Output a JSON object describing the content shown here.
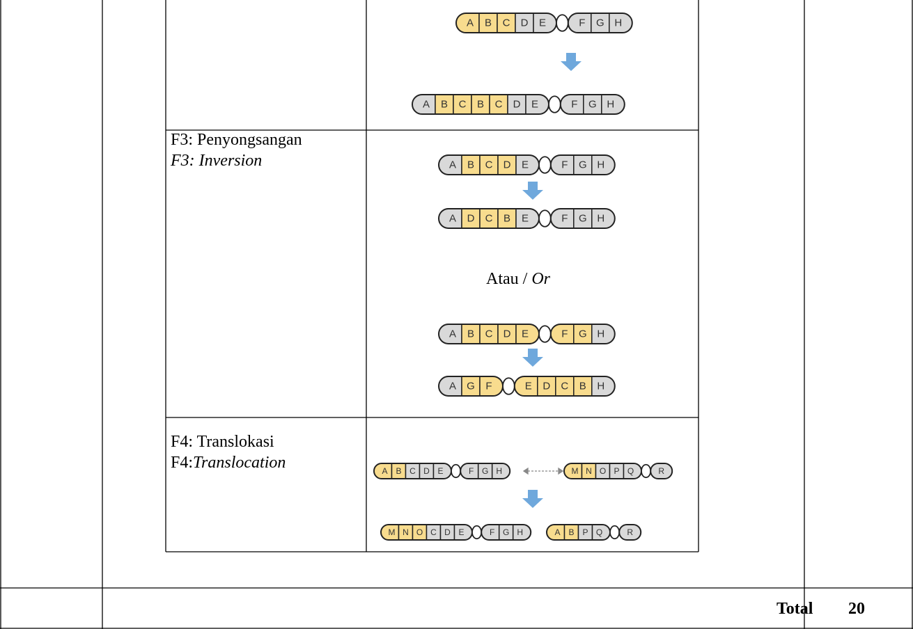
{
  "rows": [
    {
      "label": null,
      "label_italic": null
    },
    {
      "label": "F3: Penyongsangan",
      "label_italic": "F3: Inversion"
    },
    {
      "label": "F4: Translokasi",
      "label_prefix": "F4:",
      "label_italic": "Translocation"
    }
  ],
  "or_text": {
    "plain": "Atau /",
    "italic": "Or"
  },
  "total": {
    "label": "Total",
    "value": "20"
  },
  "colors": {
    "yellow": "#f8dc8e",
    "gray": "#d9d9d9",
    "arrow": "#6fa8dc"
  },
  "chromosomes": [
    {
      "arms": [
        [
          {
            "label": "A",
            "yellow": true
          },
          {
            "label": "B",
            "yellow": true
          },
          {
            "label": "C",
            "yellow": true
          },
          {
            "label": "D",
            "yellow": false
          },
          {
            "label": "E",
            "yellow": false
          }
        ],
        [
          {
            "label": "F",
            "yellow": false
          },
          {
            "label": "G",
            "yellow": false
          },
          {
            "label": "H",
            "yellow": false
          }
        ]
      ]
    },
    {
      "arms": [
        [
          {
            "label": "A",
            "yellow": false
          },
          {
            "label": "B",
            "yellow": true
          },
          {
            "label": "C",
            "yellow": true
          },
          {
            "label": "B",
            "yellow": true
          },
          {
            "label": "C",
            "yellow": true
          },
          {
            "label": "D",
            "yellow": false
          },
          {
            "label": "E",
            "yellow": false
          }
        ],
        [
          {
            "label": "F",
            "yellow": false
          },
          {
            "label": "G",
            "yellow": false
          },
          {
            "label": "H",
            "yellow": false
          }
        ]
      ]
    },
    {
      "arms": [
        [
          {
            "label": "A",
            "yellow": false
          },
          {
            "label": "B",
            "yellow": true
          },
          {
            "label": "C",
            "yellow": true
          },
          {
            "label": "D",
            "yellow": true
          },
          {
            "label": "E",
            "yellow": false
          }
        ],
        [
          {
            "label": "F",
            "yellow": false
          },
          {
            "label": "G",
            "yellow": false
          },
          {
            "label": "H",
            "yellow": false
          }
        ]
      ]
    },
    {
      "arms": [
        [
          {
            "label": "A",
            "yellow": false
          },
          {
            "label": "D",
            "yellow": true
          },
          {
            "label": "C",
            "yellow": true
          },
          {
            "label": "B",
            "yellow": true
          },
          {
            "label": "E",
            "yellow": false
          }
        ],
        [
          {
            "label": "F",
            "yellow": false
          },
          {
            "label": "G",
            "yellow": false
          },
          {
            "label": "H",
            "yellow": false
          }
        ]
      ]
    },
    {
      "arms": [
        [
          {
            "label": "A",
            "yellow": false
          },
          {
            "label": "B",
            "yellow": true
          },
          {
            "label": "C",
            "yellow": true
          },
          {
            "label": "D",
            "yellow": true
          },
          {
            "label": "E",
            "yellow": true
          }
        ],
        [
          {
            "label": "F",
            "yellow": true
          },
          {
            "label": "G",
            "yellow": true
          },
          {
            "label": "H",
            "yellow": false
          }
        ]
      ]
    },
    {
      "arms": [
        [
          {
            "label": "A",
            "yellow": false
          },
          {
            "label": "G",
            "yellow": true
          },
          {
            "label": "F",
            "yellow": true
          }
        ],
        [
          {
            "label": "E",
            "yellow": true
          },
          {
            "label": "D",
            "yellow": true
          },
          {
            "label": "C",
            "yellow": true
          },
          {
            "label": "B",
            "yellow": true
          },
          {
            "label": "H",
            "yellow": false
          }
        ]
      ]
    },
    {
      "arms": [
        [
          {
            "label": "A",
            "yellow": true
          },
          {
            "label": "B",
            "yellow": true
          },
          {
            "label": "C",
            "yellow": false
          },
          {
            "label": "D",
            "yellow": false
          },
          {
            "label": "E",
            "yellow": false
          }
        ],
        [
          {
            "label": "F",
            "yellow": false
          },
          {
            "label": "G",
            "yellow": false
          },
          {
            "label": "H",
            "yellow": false
          }
        ]
      ]
    },
    {
      "arms": [
        [
          {
            "label": "M",
            "yellow": true
          },
          {
            "label": "N",
            "yellow": true
          },
          {
            "label": "O",
            "yellow": false
          },
          {
            "label": "P",
            "yellow": false
          },
          {
            "label": "Q",
            "yellow": false
          }
        ],
        [
          {
            "label": "R",
            "yellow": false
          }
        ]
      ]
    },
    {
      "arms": [
        [
          {
            "label": "M",
            "yellow": true
          },
          {
            "label": "N",
            "yellow": true
          },
          {
            "label": "O",
            "yellow": true
          },
          {
            "label": "C",
            "yellow": false
          },
          {
            "label": "D",
            "yellow": false
          },
          {
            "label": "E",
            "yellow": false
          }
        ],
        [
          {
            "label": "F",
            "yellow": false
          },
          {
            "label": "G",
            "yellow": false
          },
          {
            "label": "H",
            "yellow": false
          }
        ]
      ]
    },
    {
      "arms": [
        [
          {
            "label": "A",
            "yellow": true
          },
          {
            "label": "B",
            "yellow": true
          },
          {
            "label": "P",
            "yellow": false
          },
          {
            "label": "Q",
            "yellow": false
          }
        ],
        [
          {
            "label": "R",
            "yellow": false
          }
        ]
      ]
    }
  ]
}
